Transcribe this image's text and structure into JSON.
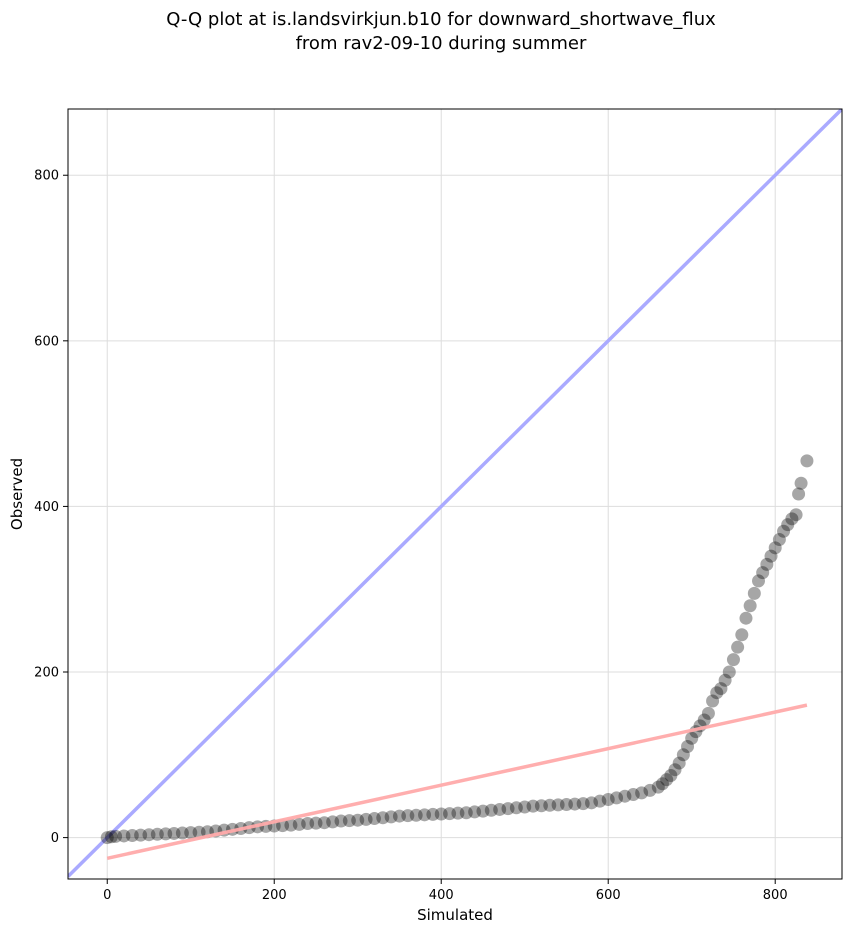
{
  "chart_data": {
    "type": "scatter",
    "title_line1": "Q-Q plot at is.landsvirkjun.b10 for downward_shortwave_flux",
    "title_line2": "from rav2-09-10 during summer",
    "xlabel": "Simulated",
    "ylabel": "Observed",
    "xlim": [
      -47,
      880
    ],
    "ylim": [
      -50,
      880
    ],
    "xticks": [
      0,
      200,
      400,
      600,
      800
    ],
    "yticks": [
      0,
      200,
      400,
      600,
      800
    ],
    "grid": true,
    "series": [
      {
        "points": [
          [
            0,
            0
          ],
          [
            5,
            1
          ],
          [
            10,
            1.5
          ],
          [
            20,
            2
          ],
          [
            30,
            2.5
          ],
          [
            40,
            3
          ],
          [
            50,
            3.5
          ],
          [
            60,
            4
          ],
          [
            70,
            4.5
          ],
          [
            80,
            5
          ],
          [
            90,
            5.5
          ],
          [
            100,
            6
          ],
          [
            110,
            6.5
          ],
          [
            120,
            7
          ],
          [
            130,
            8
          ],
          [
            140,
            9
          ],
          [
            150,
            10
          ],
          [
            160,
            11
          ],
          [
            170,
            12
          ],
          [
            180,
            13
          ],
          [
            190,
            13.5
          ],
          [
            200,
            14
          ],
          [
            210,
            14.5
          ],
          [
            220,
            15
          ],
          [
            230,
            16
          ],
          [
            240,
            17
          ],
          [
            250,
            17.5
          ],
          [
            260,
            18
          ],
          [
            270,
            19
          ],
          [
            280,
            20
          ],
          [
            290,
            20.5
          ],
          [
            300,
            21
          ],
          [
            310,
            22
          ],
          [
            320,
            23
          ],
          [
            330,
            24
          ],
          [
            340,
            25
          ],
          [
            350,
            26
          ],
          [
            360,
            26.5
          ],
          [
            370,
            27
          ],
          [
            380,
            27.5
          ],
          [
            390,
            28
          ],
          [
            400,
            28.5
          ],
          [
            410,
            29
          ],
          [
            420,
            29.5
          ],
          [
            430,
            30
          ],
          [
            440,
            31
          ],
          [
            450,
            32
          ],
          [
            460,
            33
          ],
          [
            470,
            34
          ],
          [
            480,
            35
          ],
          [
            490,
            36
          ],
          [
            500,
            37
          ],
          [
            510,
            38
          ],
          [
            520,
            38.5
          ],
          [
            530,
            39
          ],
          [
            540,
            39.5
          ],
          [
            550,
            40
          ],
          [
            560,
            40.5
          ],
          [
            570,
            41
          ],
          [
            580,
            42
          ],
          [
            590,
            44
          ],
          [
            600,
            46
          ],
          [
            610,
            48
          ],
          [
            620,
            50
          ],
          [
            630,
            52
          ],
          [
            640,
            54
          ],
          [
            650,
            57
          ],
          [
            660,
            61
          ],
          [
            665,
            65
          ],
          [
            670,
            70
          ],
          [
            675,
            75
          ],
          [
            680,
            82
          ],
          [
            685,
            90
          ],
          [
            690,
            100
          ],
          [
            695,
            110
          ],
          [
            700,
            120
          ],
          [
            705,
            128
          ],
          [
            710,
            135
          ],
          [
            715,
            142
          ],
          [
            720,
            150
          ],
          [
            725,
            165
          ],
          [
            730,
            175
          ],
          [
            735,
            180
          ],
          [
            740,
            190
          ],
          [
            745,
            200
          ],
          [
            750,
            215
          ],
          [
            755,
            230
          ],
          [
            760,
            245
          ],
          [
            765,
            265
          ],
          [
            770,
            280
          ],
          [
            775,
            295
          ],
          [
            780,
            310
          ],
          [
            785,
            320
          ],
          [
            790,
            330
          ],
          [
            795,
            340
          ],
          [
            800,
            350
          ],
          [
            805,
            360
          ],
          [
            810,
            370
          ],
          [
            815,
            378
          ],
          [
            820,
            385
          ],
          [
            825,
            390
          ],
          [
            828,
            415
          ],
          [
            831,
            428
          ],
          [
            838,
            455
          ]
        ]
      }
    ],
    "reference_lines": [
      {
        "kind": "1:1",
        "color": "#aaaaff",
        "x": [
          -47,
          880
        ],
        "y": [
          -47,
          880
        ]
      },
      {
        "kind": "fit",
        "color": "#ffaaaa",
        "x": [
          0,
          838
        ],
        "y": [
          -25,
          160
        ]
      }
    ],
    "colors": {
      "points": "#000000",
      "axes": "#000000",
      "grid": "#dddddd"
    }
  }
}
